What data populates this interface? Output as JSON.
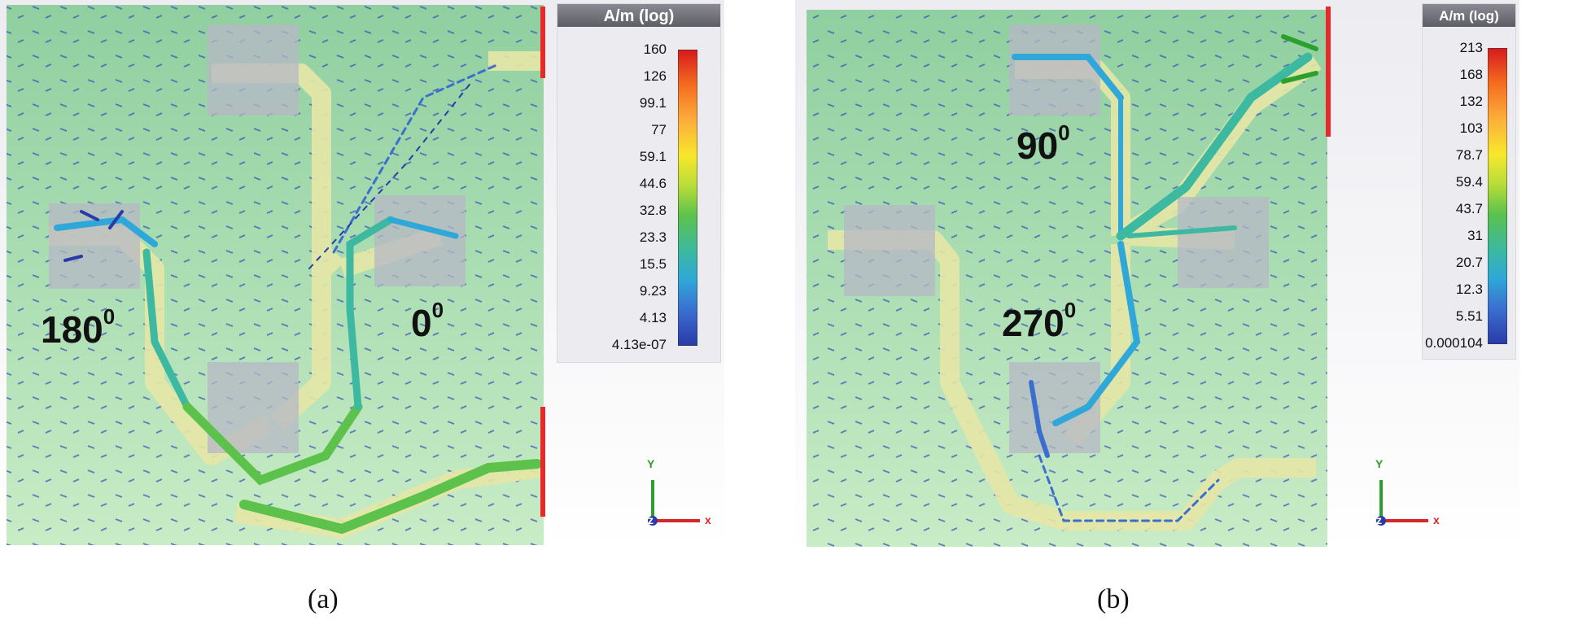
{
  "panels": [
    {
      "id": "a",
      "caption": "(a)",
      "legend": {
        "title": "A/m (log)",
        "ticks": [
          "160",
          "126",
          "99.1",
          "77",
          "59.1",
          "44.6",
          "32.8",
          "23.3",
          "15.5",
          "9.23",
          "4.13",
          "4.13e-07"
        ]
      },
      "phase_labels": [
        {
          "value": "180",
          "deg": "0"
        },
        {
          "value": "0",
          "deg": "0"
        }
      ],
      "axes": {
        "y": "Y",
        "z": "z",
        "x": "x"
      }
    },
    {
      "id": "b",
      "caption": "(b)",
      "legend": {
        "title": "A/m (log)",
        "ticks": [
          "213",
          "168",
          "132",
          "103",
          "78.7",
          "59.4",
          "43.7",
          "31",
          "20.7",
          "12.3",
          "5.51",
          "0.000104"
        ]
      },
      "phase_labels": [
        {
          "value": "90",
          "deg": "0"
        },
        {
          "value": "270",
          "deg": "0"
        }
      ],
      "axes": {
        "y": "Y",
        "z": "z",
        "x": "x"
      }
    }
  ],
  "colors": {
    "board": "#bfe3bf",
    "trace": "#e6e8a8",
    "pad": "#b8b8c8",
    "port": "#e8282a",
    "colormap": [
      "#d7191c",
      "#f46d20",
      "#fdae3a",
      "#f7e82c",
      "#b8dc3a",
      "#5cc24c",
      "#3cb9a0",
      "#2fa7d8",
      "#3a6fd0",
      "#2a3aa8"
    ]
  }
}
